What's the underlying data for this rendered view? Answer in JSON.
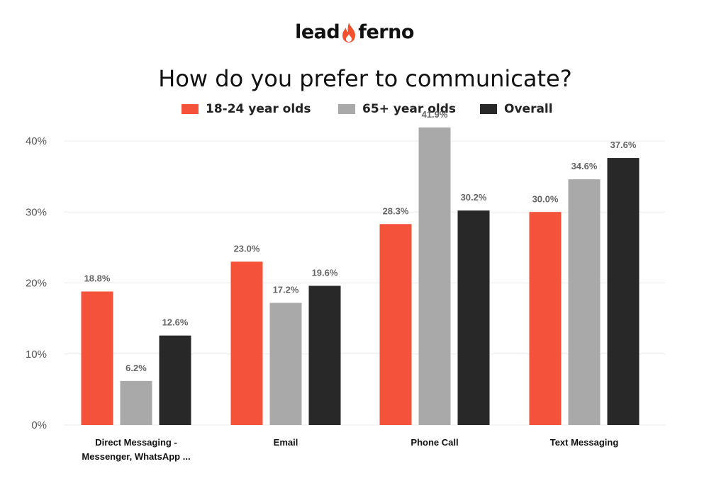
{
  "logo": {
    "part1": "lead",
    "part2": "ferno",
    "flame_color": "#f4502d"
  },
  "chart_data": {
    "type": "bar",
    "title": "How do you prefer to communicate?",
    "categories": [
      "Direct Messaging - Messenger, WhatsApp ...",
      "Email",
      "Phone Call",
      "Text Messaging"
    ],
    "category_lines": [
      [
        "Direct Messaging -",
        "Messenger, WhatsApp ..."
      ],
      [
        "Email"
      ],
      [
        "Phone Call"
      ],
      [
        "Text Messaging"
      ]
    ],
    "series": [
      {
        "name": "18-24 year olds",
        "color": "#f4523a",
        "values": [
          18.8,
          23.0,
          28.3,
          30.0
        ],
        "labels": [
          "18.8%",
          "23.0%",
          "28.3%",
          "30.0%"
        ]
      },
      {
        "name": "65+ year olds",
        "color": "#a9a9a9",
        "values": [
          6.2,
          17.2,
          41.9,
          34.6
        ],
        "labels": [
          "6.2%",
          "17.2%",
          "41.9%",
          "34.6%"
        ]
      },
      {
        "name": "Overall",
        "color": "#282828",
        "values": [
          12.6,
          19.6,
          30.2,
          37.6
        ],
        "labels": [
          "12.6%",
          "19.6%",
          "30.2%",
          "37.6%"
        ]
      }
    ],
    "ylim": [
      0,
      40
    ],
    "yticks": [
      0,
      10,
      20,
      30,
      40
    ],
    "ytick_labels": [
      "0%",
      "10%",
      "20%",
      "30%",
      "40%"
    ],
    "grid": true,
    "legend_position": "top"
  }
}
